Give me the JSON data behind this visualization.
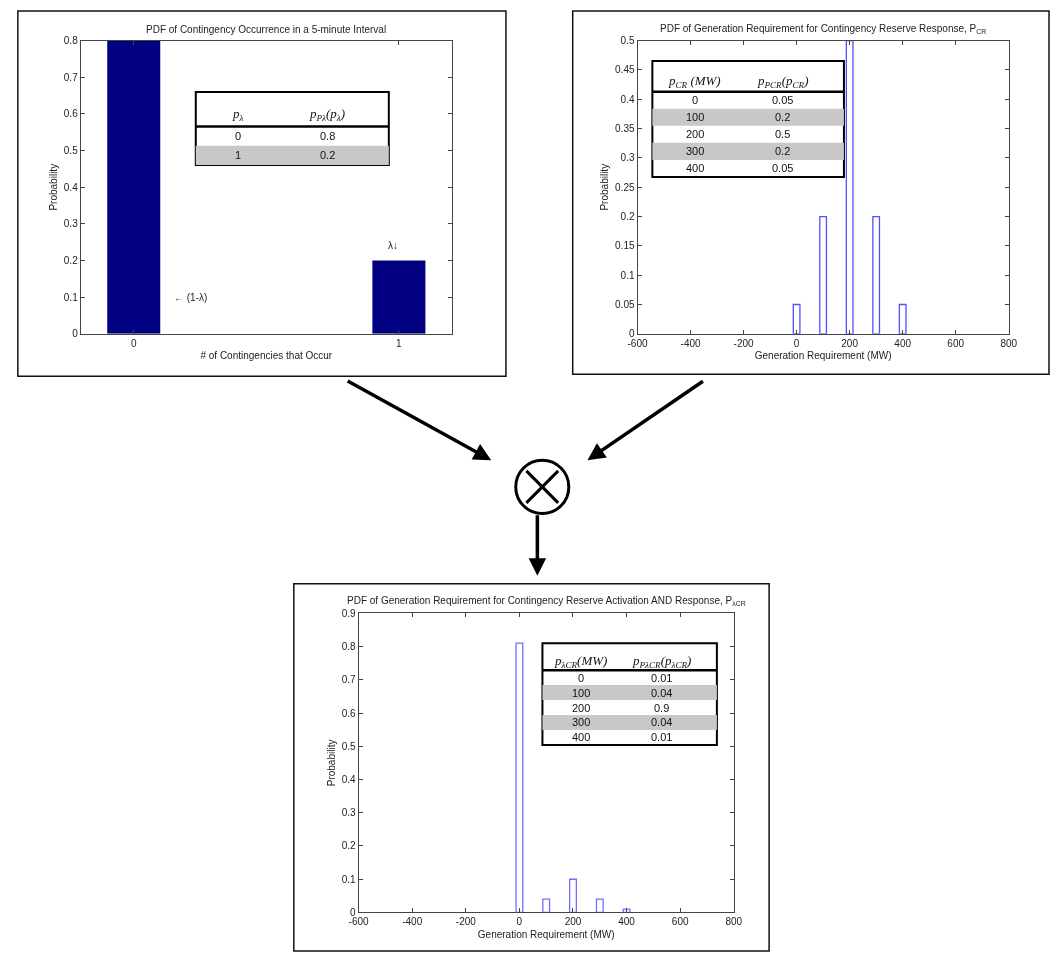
{
  "chart_data": [
    {
      "type": "bar",
      "title": "PDF of Contingency Occurrence in a 5-minute Interval",
      "xlabel": "# of Contingencies that Occur",
      "ylabel": "Probability",
      "categories": [
        "0",
        "1"
      ],
      "values": [
        0.8,
        0.2
      ],
      "color": "#000080",
      "ylim": [
        0,
        0.8
      ],
      "yticks": [
        0,
        0.1,
        0.2,
        0.3,
        0.4,
        0.5,
        0.6,
        0.7,
        0.8
      ],
      "annotations": [
        "p$_{λ}$",
        "p$_{Pλ}$(p$_{λ}$)",
        "0",
        "0.8",
        "1",
        "0.2",
        "← (1-λ)",
        {
          "text": "λ↓",
          "x": "1",
          "y": 0.2
        }
      ]
    },
    {
      "type": "bar",
      "title": "PDF of Generation Requirement for Contingency Reserve Response, P$_{CR}$",
      "xlabel": "Generation Requirement (MW)",
      "ylabel": "Probability",
      "x": [
        0,
        100,
        200,
        300,
        400
      ],
      "values": [
        0.05,
        0.2,
        0.5,
        0.2,
        0.05
      ],
      "color": "#5050ff",
      "xlim": [
        -600,
        800
      ],
      "xticks": [
        -600,
        -400,
        -200,
        0,
        200,
        400,
        600,
        800
      ],
      "ylim": [
        0,
        0.5
      ],
      "yticks": [
        0,
        0.05,
        0.1,
        0.15,
        0.2,
        0.25,
        0.3,
        0.35,
        0.4,
        0.45,
        0.5
      ],
      "annotations": [
        "p$_{CR}$ (MW)",
        "p$_{PCR}$(p$_{CR}$)",
        "0",
        "0.05",
        "100",
        "0.2",
        "200",
        "0.5",
        "300",
        "0.2",
        "400",
        "0.05"
      ]
    },
    {
      "type": "bar",
      "title": "PDF of Generation Requirement for Contingency Reserve Activation AND Response, P$_{λCR}$",
      "xlabel": "Generation Requirement (MW)",
      "ylabel": "Probability",
      "x": [
        0,
        100,
        200,
        300,
        400
      ],
      "values": [
        0.81,
        0.04,
        0.1,
        0.04,
        0.01
      ],
      "color": "#7070ff",
      "xlim": [
        -600,
        800
      ],
      "xticks": [
        -600,
        -400,
        -200,
        0,
        200,
        400,
        600,
        800
      ],
      "ylim": [
        0,
        0.9
      ],
      "yticks": [
        0,
        0.1,
        0.2,
        0.3,
        0.4,
        0.5,
        0.6,
        0.7,
        0.8,
        0.9
      ],
      "annotations": [
        "p$_{λCR}$(MW)",
        "p$_{PλCR}$(p$_{λCR}$)",
        "0",
        "0.01",
        "100",
        "0.04",
        "200",
        "0.9",
        "300",
        "0.04",
        "400",
        "0.01"
      ]
    }
  ]
}
